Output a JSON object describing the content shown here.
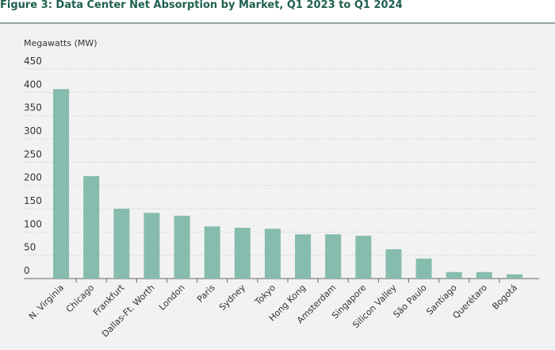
{
  "chart_data": {
    "type": "bar",
    "title": "Figure 3: Data Center Net Absorption by Market, Q1 2023 to Q1 2024",
    "y_label": "Megawatts (MW)",
    "categories": [
      "N. Virginia",
      "Chicago",
      "Frankfurt",
      "Dallas-Ft. Worth",
      "London",
      "Paris",
      "Sydney",
      "Tokyo",
      "Hong Kong",
      "Amsterdam",
      "Singapore",
      "Silicon Valley",
      "São Paulo",
      "Santiago",
      "Querétaro",
      "Bogotá"
    ],
    "values": [
      407,
      220,
      150,
      141,
      135,
      112,
      109,
      107,
      95,
      95,
      92,
      63,
      43,
      14,
      14,
      9
    ],
    "color": "#86bcad",
    "ylim": [
      0,
      450
    ],
    "yticks": [
      0,
      50,
      100,
      150,
      200,
      250,
      300,
      350,
      400,
      450
    ],
    "grid": true
  }
}
